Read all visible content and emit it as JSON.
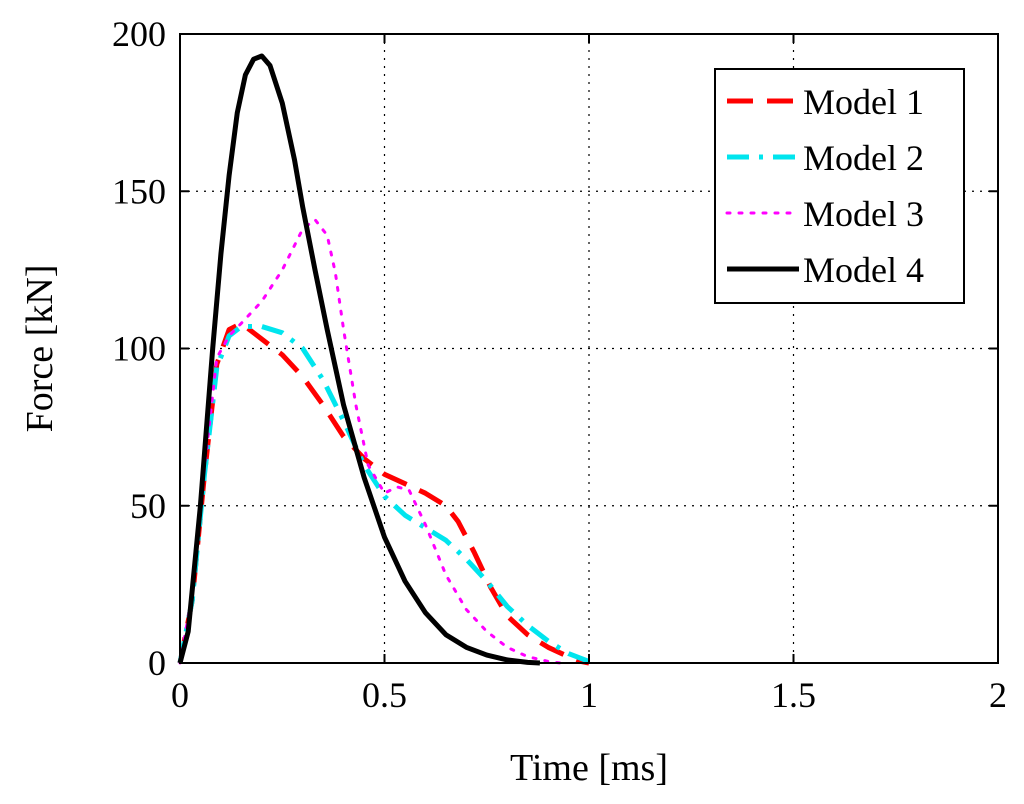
{
  "chart_data": {
    "type": "line",
    "title": "",
    "xlabel": "Time [ms]",
    "ylabel": "Force [kN]",
    "xlim": [
      0,
      2
    ],
    "ylim": [
      0,
      200
    ],
    "xticks": [
      0,
      0.5,
      1,
      1.5,
      2
    ],
    "xtick_labels": [
      "0",
      "0.5",
      "1",
      "1.5",
      "2"
    ],
    "yticks": [
      0,
      50,
      100,
      150,
      200
    ],
    "ytick_labels": [
      "0",
      "50",
      "100",
      "150",
      "200"
    ],
    "grid": true,
    "legend_position": "top-right",
    "series": [
      {
        "name": "Model 1",
        "color": "#ff0000",
        "style": "dashed",
        "x": [
          0,
          0.03,
          0.06,
          0.09,
          0.12,
          0.15,
          0.18,
          0.2,
          0.25,
          0.3,
          0.35,
          0.4,
          0.45,
          0.5,
          0.55,
          0.6,
          0.65,
          0.68,
          0.72,
          0.76,
          0.8,
          0.85,
          0.9,
          0.95,
          0.98,
          1.0
        ],
        "y": [
          0,
          20,
          60,
          95,
          106,
          108,
          105,
          103,
          98,
          91,
          82,
          72,
          65,
          60,
          57,
          54,
          50,
          45,
          35,
          24,
          15,
          9,
          5,
          2,
          0.5,
          0
        ]
      },
      {
        "name": "Model 2",
        "color": "#00e5ee",
        "style": "dashdot",
        "x": [
          0,
          0.03,
          0.06,
          0.09,
          0.12,
          0.15,
          0.2,
          0.25,
          0.3,
          0.35,
          0.4,
          0.45,
          0.5,
          0.55,
          0.6,
          0.65,
          0.7,
          0.75,
          0.8,
          0.85,
          0.9,
          0.95,
          1.0,
          1.02
        ],
        "y": [
          0,
          20,
          60,
          94,
          104,
          107,
          107,
          105,
          100,
          90,
          77,
          63,
          53,
          47,
          43,
          39,
          33,
          26,
          18,
          12,
          7,
          3,
          0.5,
          0
        ]
      },
      {
        "name": "Model 3",
        "color": "#ff00ff",
        "style": "dotted",
        "x": [
          0,
          0.03,
          0.06,
          0.09,
          0.12,
          0.15,
          0.2,
          0.25,
          0.3,
          0.33,
          0.36,
          0.38,
          0.4,
          0.43,
          0.46,
          0.5,
          0.53,
          0.56,
          0.6,
          0.65,
          0.7,
          0.75,
          0.8,
          0.85,
          0.9,
          0.93
        ],
        "y": [
          0,
          22,
          62,
          97,
          104,
          108,
          115,
          125,
          138,
          141,
          136,
          124,
          106,
          82,
          63,
          54,
          56,
          55,
          44,
          28,
          17,
          10,
          5,
          2,
          0.5,
          0
        ]
      },
      {
        "name": "Model 4",
        "color": "#000000",
        "style": "solid",
        "x": [
          0,
          0.02,
          0.05,
          0.08,
          0.1,
          0.12,
          0.14,
          0.16,
          0.18,
          0.2,
          0.22,
          0.25,
          0.28,
          0.3,
          0.33,
          0.36,
          0.4,
          0.45,
          0.5,
          0.55,
          0.6,
          0.65,
          0.7,
          0.75,
          0.8,
          0.85,
          0.88
        ],
        "y": [
          0,
          10,
          50,
          100,
          130,
          155,
          175,
          187,
          192,
          193,
          190,
          178,
          160,
          145,
          125,
          106,
          82,
          59,
          40,
          26,
          16,
          9,
          5,
          2.5,
          1,
          0.2,
          0
        ]
      }
    ]
  }
}
